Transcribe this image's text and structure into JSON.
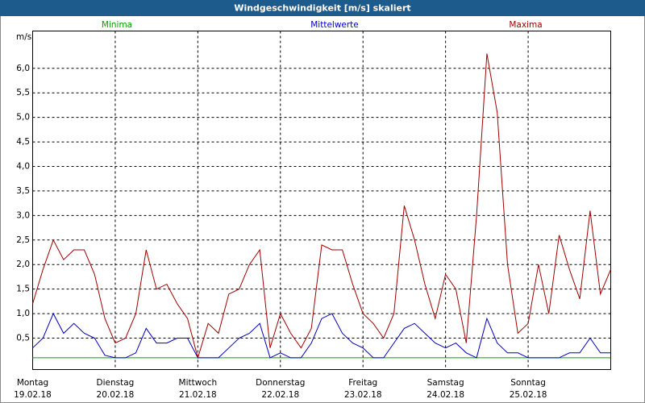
{
  "chart_data": {
    "type": "line",
    "title": "Windgeschwindigkeit [m/s] skaliert",
    "y_label": "m/s",
    "x": [
      0,
      3,
      6,
      9,
      12,
      15,
      18,
      21,
      24,
      27,
      30,
      33,
      36,
      39,
      42,
      45,
      48,
      51,
      54,
      57,
      60,
      63,
      66,
      69,
      72,
      75,
      78,
      81,
      84,
      87,
      90,
      93,
      96,
      99,
      102,
      105,
      108,
      111,
      114,
      117,
      120,
      123,
      126,
      129,
      132,
      135,
      138,
      141,
      144,
      147,
      150,
      153,
      156,
      159,
      162,
      165,
      168
    ],
    "series": [
      {
        "name": "Minima",
        "color": "#00a000",
        "values": [
          0.1,
          0.1,
          0.1,
          0.1,
          0.1,
          0.1,
          0.1,
          0.1,
          0.1,
          0.1,
          0.1,
          0.1,
          0.1,
          0.1,
          0.1,
          0.1,
          0.1,
          0.1,
          0.1,
          0.1,
          0.1,
          0.1,
          0.1,
          0.1,
          0.1,
          0.1,
          0.1,
          0.1,
          0.1,
          0.1,
          0.1,
          0.1,
          0.1,
          0.1,
          0.1,
          0.1,
          0.1,
          0.1,
          0.1,
          0.1,
          0.1,
          0.1,
          0.1,
          0.1,
          0.1,
          0.1,
          0.1,
          0.1,
          0.1,
          0.1,
          0.1,
          0.1,
          0.1,
          0.1,
          0.1,
          0.1,
          0.1
        ]
      },
      {
        "name": "Mittelwerte",
        "color": "#0000c0",
        "values": [
          0.3,
          0.5,
          1.0,
          0.6,
          0.8,
          0.6,
          0.5,
          0.15,
          0.1,
          0.1,
          0.2,
          0.7,
          0.4,
          0.4,
          0.5,
          0.5,
          0.1,
          0.1,
          0.1,
          0.3,
          0.5,
          0.6,
          0.8,
          0.1,
          0.2,
          0.1,
          0.1,
          0.4,
          0.9,
          1.0,
          0.6,
          0.4,
          0.3,
          0.1,
          0.1,
          0.4,
          0.7,
          0.8,
          0.6,
          0.4,
          0.3,
          0.4,
          0.2,
          0.1,
          0.9,
          0.4,
          0.2,
          0.2,
          0.1,
          0.1,
          0.1,
          0.1,
          0.2,
          0.2,
          0.5,
          0.2,
          0.2
        ]
      },
      {
        "name": "Maxima",
        "color": "#a00000",
        "values": [
          1.2,
          1.9,
          2.5,
          2.1,
          2.3,
          2.3,
          1.8,
          0.9,
          0.4,
          0.5,
          1.0,
          2.3,
          1.5,
          1.6,
          1.2,
          0.9,
          0.1,
          0.8,
          0.6,
          1.4,
          1.5,
          2.0,
          2.3,
          0.3,
          1.0,
          0.6,
          0.3,
          0.7,
          2.4,
          2.3,
          2.3,
          1.6,
          1.0,
          0.8,
          0.5,
          1.0,
          3.2,
          2.5,
          1.6,
          0.9,
          1.8,
          1.5,
          0.4,
          3.0,
          6.3,
          5.1,
          2.0,
          0.6,
          0.8,
          2.0,
          1.0,
          2.6,
          1.9,
          1.3,
          3.1,
          1.4,
          1.9
        ]
      }
    ],
    "xlim": [
      0,
      168
    ],
    "xticks": [
      {
        "value": 0,
        "label": "Montag"
      },
      {
        "value": 24,
        "label": "Dienstag"
      },
      {
        "value": 48,
        "label": "Mittwoch"
      },
      {
        "value": 72,
        "label": "Donnerstag"
      },
      {
        "value": 96,
        "label": "Freitag"
      },
      {
        "value": 120,
        "label": "Samstag"
      },
      {
        "value": 144,
        "label": "Sonntag"
      }
    ],
    "xtick_dates": [
      "19.02.18",
      "20.02.18",
      "21.02.18",
      "22.02.18",
      "23.02.18",
      "24.02.18",
      "25.02.18"
    ],
    "ylim": [
      -0.14,
      6.76
    ],
    "yticks": [
      {
        "value": 0.5,
        "label": "0,5"
      },
      {
        "value": 1.0,
        "label": "1,0"
      },
      {
        "value": 1.5,
        "label": "1,5"
      },
      {
        "value": 2.0,
        "label": "2,0"
      },
      {
        "value": 2.5,
        "label": "2,5"
      },
      {
        "value": 3.0,
        "label": "3,0"
      },
      {
        "value": 3.5,
        "label": "3,5"
      },
      {
        "value": 4.0,
        "label": "4,0"
      },
      {
        "value": 4.5,
        "label": "4,5"
      },
      {
        "value": 5.0,
        "label": "5,0"
      },
      {
        "value": 5.5,
        "label": "5,5"
      },
      {
        "value": 6.0,
        "label": "6,0"
      }
    ],
    "grid": true
  }
}
